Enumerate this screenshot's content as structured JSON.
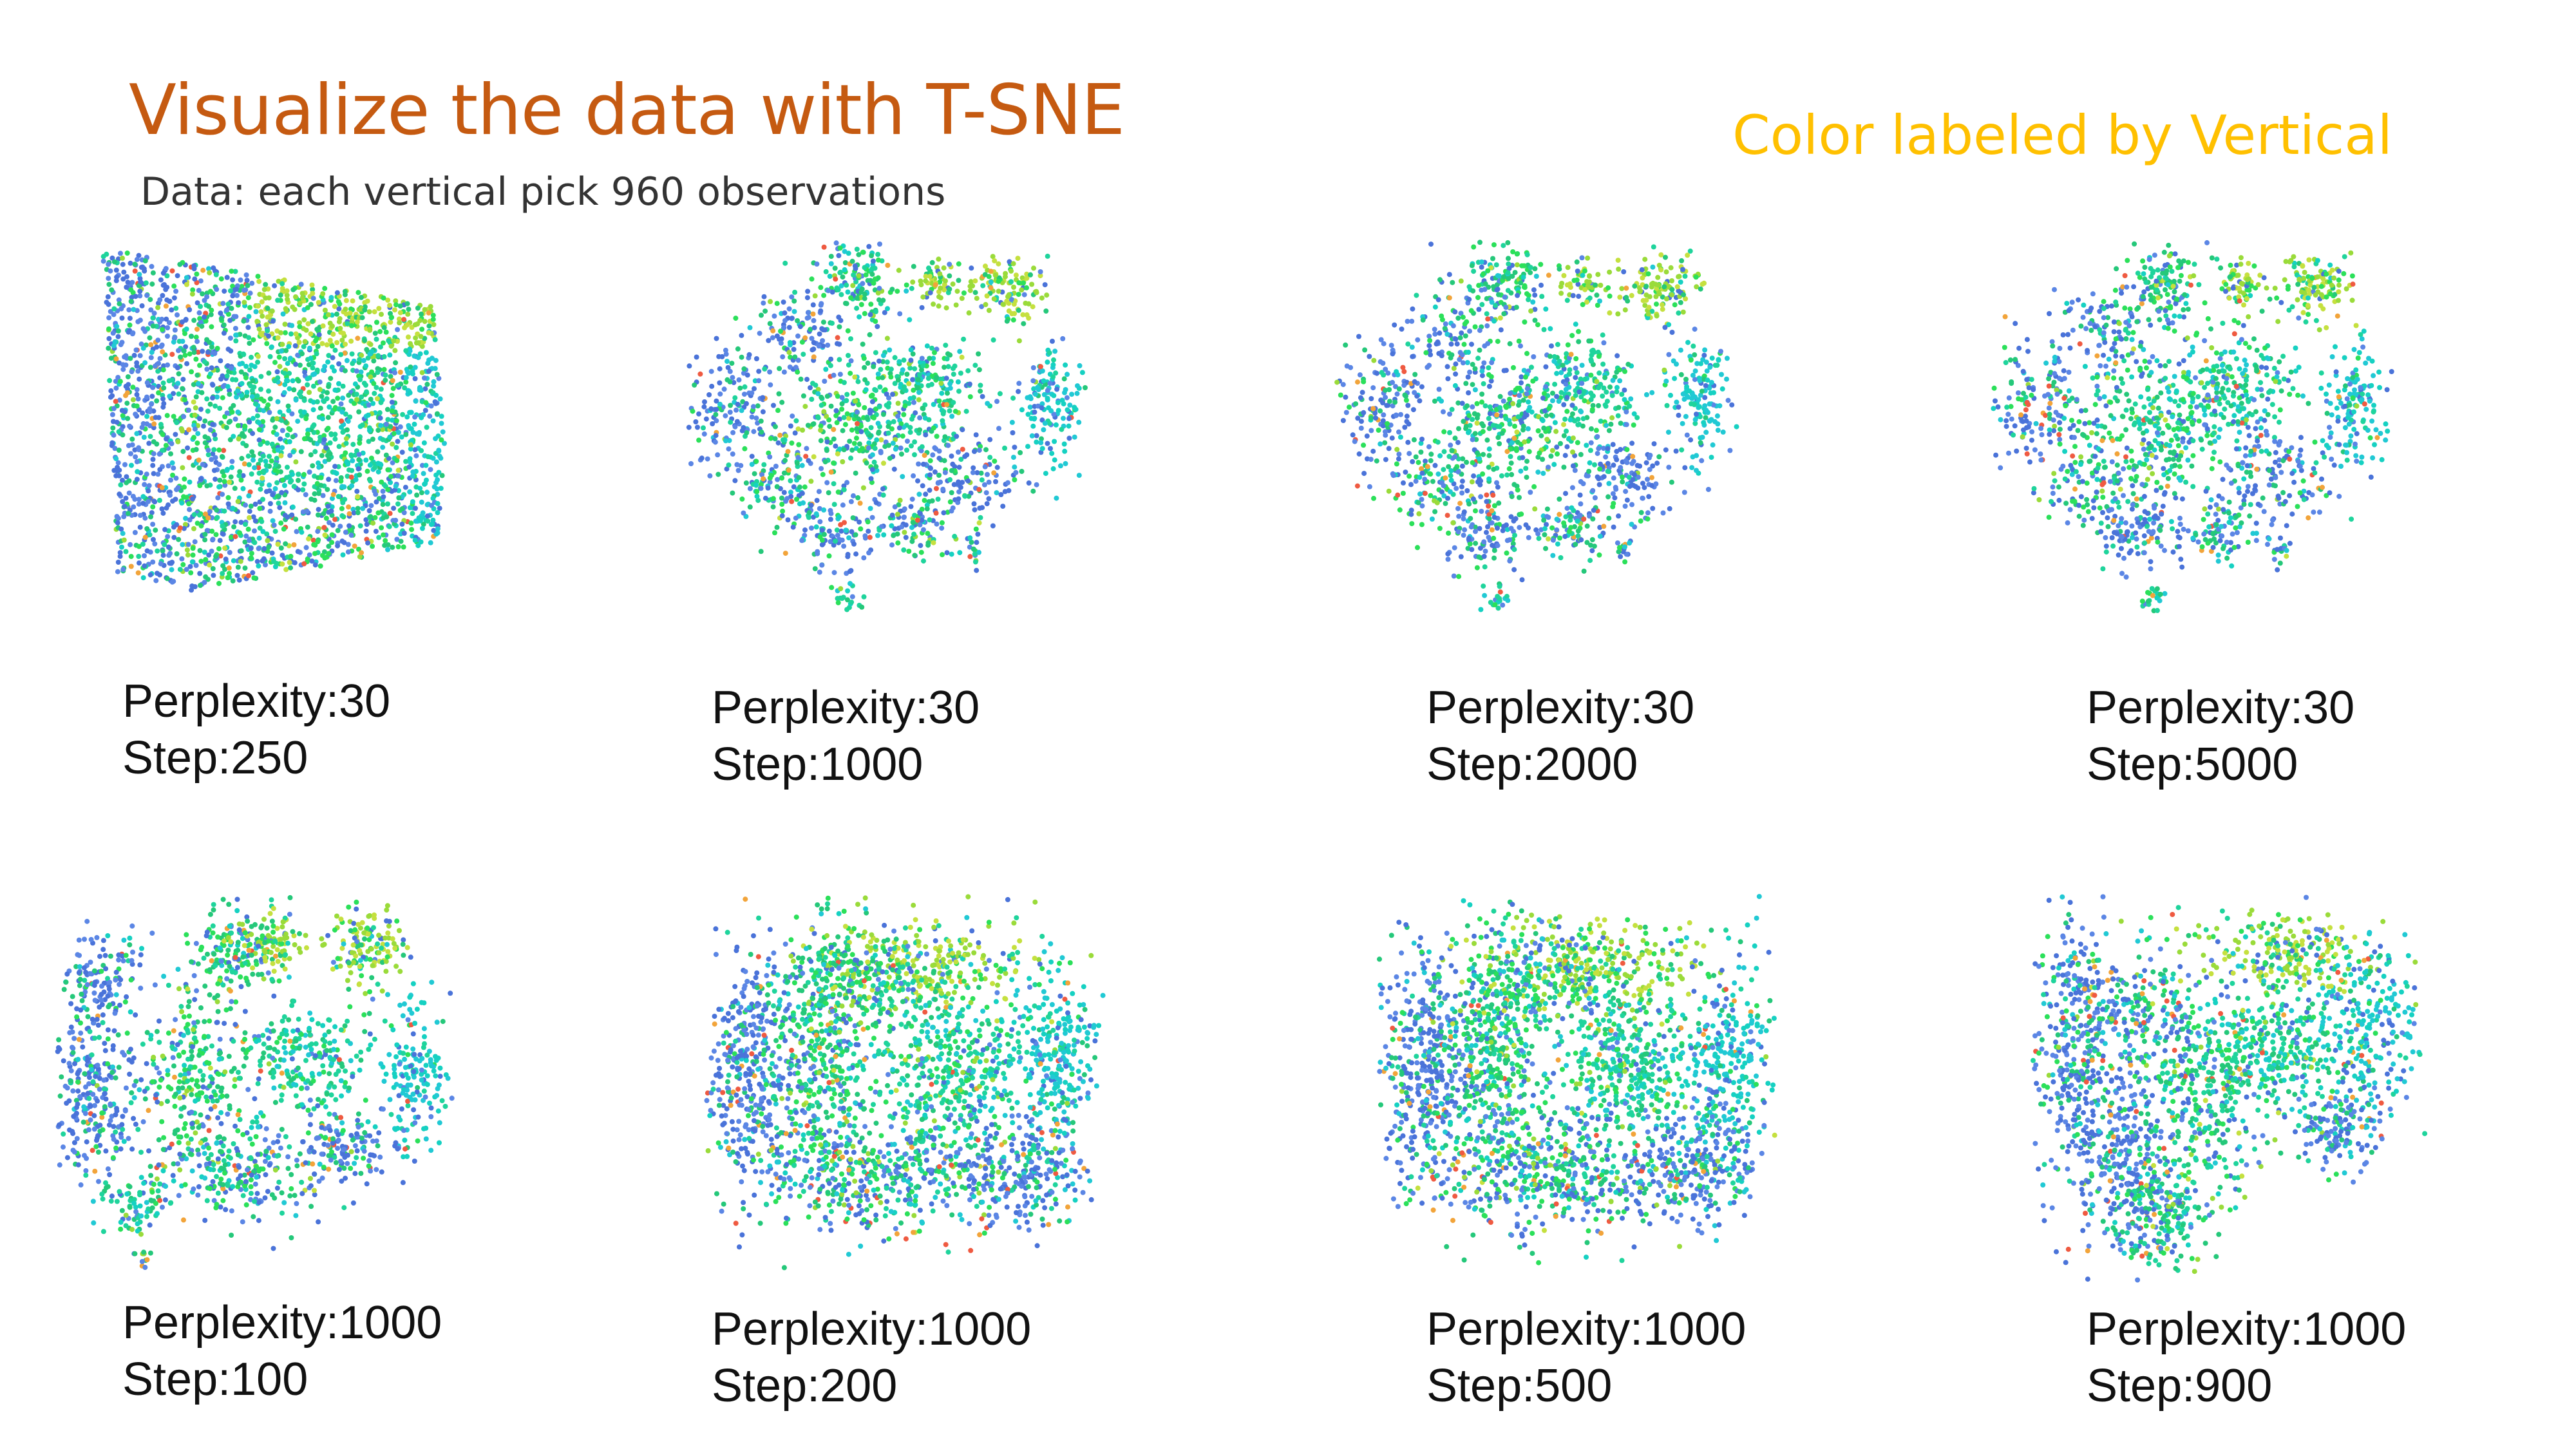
{
  "title": "Visualize the data with T-SNE",
  "subtitle": "Data: each vertical pick 960 observations",
  "color_note": "Color labeled by Vertical",
  "colors": {
    "title": "#C55A11",
    "color_note": "#FFC000",
    "palette": [
      "#4A73D9",
      "#5B86E5",
      "#25C87A",
      "#1FD49C",
      "#2BE05A",
      "#9ADB3A",
      "#C5E03F",
      "#21C9D4",
      "#16D1C2",
      "#EF5A41",
      "#F2A43A"
    ]
  },
  "chart_data": [
    {
      "type": "scatter",
      "title": "",
      "caption": [
        "Perplexity:30",
        "Step:250"
      ],
      "perplexity": 30,
      "step": 250,
      "shape": "wedge"
    },
    {
      "type": "scatter",
      "title": "",
      "caption": [
        "Perplexity:30",
        "Step:1000"
      ],
      "perplexity": 30,
      "step": 1000,
      "shape": "clusters"
    },
    {
      "type": "scatter",
      "title": "",
      "caption": [
        "Perplexity:30",
        "Step:2000"
      ],
      "perplexity": 30,
      "step": 2000,
      "shape": "clusters"
    },
    {
      "type": "scatter",
      "title": "",
      "caption": [
        "Perplexity:30",
        "Step:5000"
      ],
      "perplexity": 30,
      "step": 5000,
      "shape": "clusters"
    },
    {
      "type": "scatter",
      "title": "",
      "caption": [
        "Perplexity:1000",
        "Step:100"
      ],
      "perplexity": 1000,
      "step": 100,
      "shape": "loose-clusters"
    },
    {
      "type": "scatter",
      "title": "",
      "caption": [
        "Perplexity:1000",
        "Step:200"
      ],
      "perplexity": 1000,
      "step": 200,
      "shape": "blob"
    },
    {
      "type": "scatter",
      "title": "",
      "caption": [
        "Perplexity:1000",
        "Step:500"
      ],
      "perplexity": 1000,
      "step": 500,
      "shape": "blob"
    },
    {
      "type": "scatter",
      "title": "",
      "caption": [
        "Perplexity:1000",
        "Step:900"
      ],
      "perplexity": 1000,
      "step": 900,
      "shape": "butterfly"
    }
  ]
}
